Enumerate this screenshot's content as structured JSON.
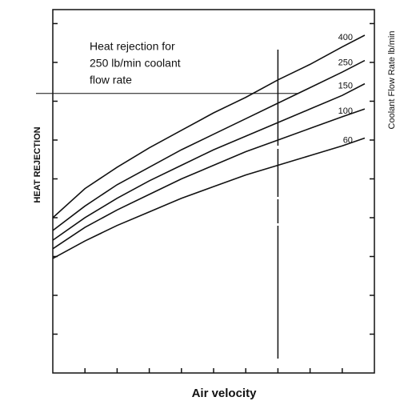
{
  "chart_data": {
    "type": "line",
    "xlabel": "Air velocity",
    "ylabel": "HEAT REJECTION",
    "y2label": "Coolant Flow Rate lb/min",
    "annotation": [
      "Heat rejection for",
      "250 lb/min coolant",
      "flow rate"
    ],
    "x": [
      0,
      1,
      2,
      3,
      4,
      5,
      6,
      7,
      8,
      9,
      9.7
    ],
    "series": [
      {
        "name": "400",
        "color": "#111111",
        "values": [
          4.0,
          4.75,
          5.3,
          5.8,
          6.25,
          6.7,
          7.1,
          7.55,
          7.95,
          8.4,
          8.7
        ]
      },
      {
        "name": "250",
        "color": "#111111",
        "values": [
          3.67,
          4.3,
          4.85,
          5.3,
          5.75,
          6.15,
          6.55,
          6.95,
          7.35,
          7.75,
          8.05
        ]
      },
      {
        "name": "150",
        "color": "#111111",
        "values": [
          3.42,
          4.0,
          4.5,
          4.95,
          5.35,
          5.75,
          6.1,
          6.45,
          6.8,
          7.15,
          7.45
        ]
      },
      {
        "name": "100",
        "color": "#111111",
        "values": [
          3.2,
          3.75,
          4.2,
          4.6,
          5.0,
          5.35,
          5.7,
          6.0,
          6.3,
          6.6,
          6.8
        ]
      },
      {
        "name": "60",
        "color": "#111111",
        "values": [
          2.95,
          3.4,
          3.8,
          4.15,
          4.5,
          4.8,
          5.1,
          5.35,
          5.6,
          5.85,
          6.05
        ]
      }
    ],
    "hline": 7.2,
    "vline": 7.0,
    "xlim": [
      0,
      10
    ],
    "ylim": [
      0,
      9.36
    ],
    "xticks": [
      1,
      2,
      3,
      4,
      5,
      6,
      7,
      8,
      9
    ],
    "yticks": [
      1,
      2,
      3,
      4,
      5,
      6,
      7,
      8,
      9
    ]
  }
}
